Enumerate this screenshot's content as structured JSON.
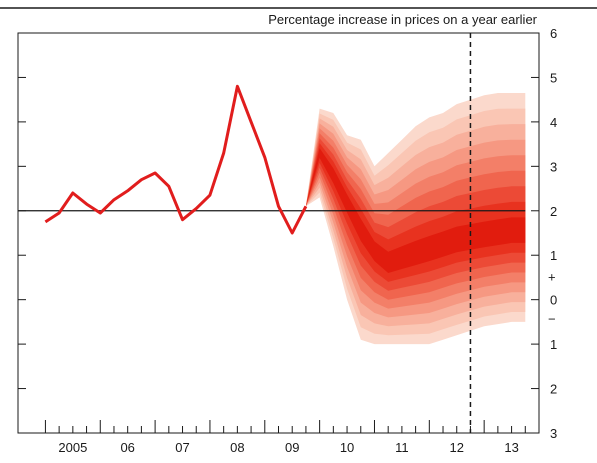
{
  "chart_data": {
    "type": "line",
    "title": "Percentage increase in prices on a year earlier",
    "xlabel": "",
    "ylabel": "",
    "xlim": [
      2004.0,
      2013.5
    ],
    "ylim": [
      -3,
      6
    ],
    "x_tick_labels": [
      {
        "x": 2005.0,
        "label": "2005"
      },
      {
        "x": 2006.0,
        "label": "06"
      },
      {
        "x": 2007.0,
        "label": "07"
      },
      {
        "x": 2008.0,
        "label": "08"
      },
      {
        "x": 2009.0,
        "label": "09"
      },
      {
        "x": 2010.0,
        "label": "10"
      },
      {
        "x": 2011.0,
        "label": "11"
      },
      {
        "x": 2012.0,
        "label": "12"
      },
      {
        "x": 2013.0,
        "label": "13"
      }
    ],
    "y_tick_labels": [
      {
        "y": 6,
        "label": "6"
      },
      {
        "y": 5,
        "label": "5"
      },
      {
        "y": 4,
        "label": "4"
      },
      {
        "y": 3,
        "label": "3"
      },
      {
        "y": 2,
        "label": "2"
      },
      {
        "y": 1,
        "label": "1"
      },
      {
        "y": 0,
        "label": "0"
      },
      {
        "y": -1,
        "label": "1"
      },
      {
        "y": -2,
        "label": "2"
      },
      {
        "y": -3,
        "label": "3"
      }
    ],
    "sign_markers": {
      "plus": "+",
      "minus": "−"
    },
    "target_line": {
      "y": 2
    },
    "vertical_marker": {
      "x": 2012.25
    },
    "series": [
      {
        "points": [
          {
            "x": 2004.5,
            "y": 1.75
          },
          {
            "x": 2004.75,
            "y": 1.95
          },
          {
            "x": 2005.0,
            "y": 2.4
          },
          {
            "x": 2005.25,
            "y": 2.15
          },
          {
            "x": 2005.5,
            "y": 1.95
          },
          {
            "x": 2005.75,
            "y": 2.25
          },
          {
            "x": 2006.0,
            "y": 2.45
          },
          {
            "x": 2006.25,
            "y": 2.7
          },
          {
            "x": 2006.5,
            "y": 2.85
          },
          {
            "x": 2006.75,
            "y": 2.55
          },
          {
            "x": 2007.0,
            "y": 1.8
          },
          {
            "x": 2007.25,
            "y": 2.05
          },
          {
            "x": 2007.5,
            "y": 2.35
          },
          {
            "x": 2007.75,
            "y": 3.3
          },
          {
            "x": 2008.0,
            "y": 4.8
          },
          {
            "x": 2008.25,
            "y": 4.0
          },
          {
            "x": 2008.5,
            "y": 3.2
          },
          {
            "x": 2008.75,
            "y": 2.1
          },
          {
            "x": 2009.0,
            "y": 1.5
          },
          {
            "x": 2009.25,
            "y": 2.1
          }
        ]
      }
    ],
    "fan": {
      "x": [
        2009.25,
        2009.5,
        2009.75,
        2010.0,
        2010.25,
        2010.5,
        2010.75,
        2011.0,
        2011.25,
        2011.5,
        2011.75,
        2012.0,
        2012.25,
        2012.5,
        2012.75,
        2013.0,
        2013.25
      ],
      "central": [
        2.1,
        3.3,
        2.8,
        2.2,
        1.6,
        1.1,
        0.8,
        0.9,
        1.0,
        1.1,
        1.2,
        1.3,
        1.35,
        1.4,
        1.45,
        1.5,
        1.5
      ],
      "upper_outer": [
        2.1,
        4.3,
        4.2,
        3.7,
        3.6,
        3.0,
        3.3,
        3.6,
        3.9,
        4.1,
        4.2,
        4.4,
        4.5,
        4.6,
        4.65,
        4.65,
        4.65
      ],
      "lower_outer": [
        2.1,
        2.3,
        1.2,
        0.0,
        -0.9,
        -1.0,
        -1.0,
        -1.0,
        -1.0,
        -1.0,
        -0.9,
        -0.8,
        -0.7,
        -0.6,
        -0.55,
        -0.5,
        -0.5
      ],
      "bands": 9,
      "colors": [
        "#fbd9cc",
        "#fac6b4",
        "#f8b09c",
        "#f69882",
        "#f37f68",
        "#f0654e",
        "#ec4a36",
        "#e8321f",
        "#e11c0e"
      ]
    },
    "colors": {
      "line": "#e11d1d",
      "axis": "#1a1a1a"
    }
  }
}
